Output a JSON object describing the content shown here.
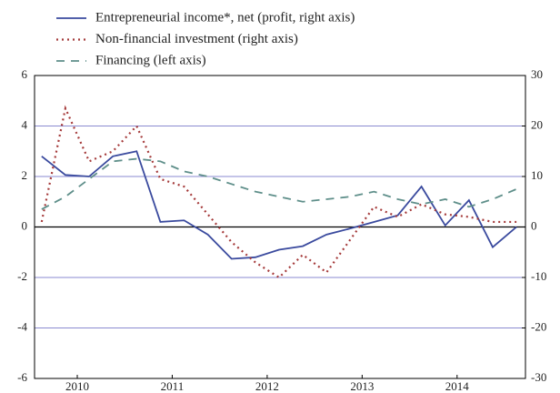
{
  "chart_data": {
    "type": "line",
    "x": [
      2010.125,
      2010.375,
      2010.625,
      2010.875,
      2011.125,
      2011.375,
      2011.625,
      2011.875,
      2012.125,
      2012.375,
      2012.625,
      2012.875,
      2013.125,
      2013.375,
      2013.625,
      2013.875,
      2014.125,
      2014.375,
      2014.625,
      2014.875,
      2015.125
    ],
    "xlim": [
      2010.05,
      2015.22
    ],
    "xticks": [
      {
        "value": 2010.5,
        "label": "2010"
      },
      {
        "value": 2011.5,
        "label": "2011"
      },
      {
        "value": 2012.5,
        "label": "2012"
      },
      {
        "value": 2013.5,
        "label": "2013"
      },
      {
        "value": 2014.5,
        "label": "2014"
      }
    ],
    "ylim": [
      -6,
      6
    ],
    "yticks": [
      -6,
      -4,
      -2,
      0,
      2,
      4,
      6
    ],
    "y2lim": [
      -30,
      30
    ],
    "y2ticks": [
      -30,
      -20,
      -10,
      0,
      10,
      20,
      30
    ],
    "grid": true,
    "series": [
      {
        "name": "Entrepreneurial income*, net (profit, right axis)",
        "color": "#3a4a9e",
        "style": "solid",
        "axis": "y2",
        "values": [
          14,
          10.3,
          10,
          14,
          15,
          1,
          1.3,
          -1.5,
          -6.3,
          -6,
          -4.5,
          -3.8,
          -1.5,
          -0.3,
          1,
          2.3,
          8,
          0.3,
          5.3,
          -4,
          0
        ]
      },
      {
        "name": "Non-financial investment (right axis)",
        "color": "#a53a3a",
        "style": "dotted",
        "axis": "y2",
        "values": [
          1,
          23.5,
          13,
          15,
          20,
          9.5,
          8,
          2.5,
          -3,
          -7,
          -10,
          -5.5,
          -9,
          -2.5,
          4,
          2,
          4.5,
          2.5,
          2,
          1,
          1
        ]
      },
      {
        "name": "Financing (left axis)",
        "color": "#5f8f8a",
        "style": "dashed",
        "axis": "y",
        "values": [
          0.7,
          1.2,
          1.9,
          2.6,
          2.7,
          2.6,
          2.2,
          2.0,
          1.7,
          1.4,
          1.2,
          1.0,
          1.1,
          1.2,
          1.4,
          1.1,
          0.9,
          1.1,
          0.8,
          1.1,
          1.5
        ]
      }
    ]
  }
}
